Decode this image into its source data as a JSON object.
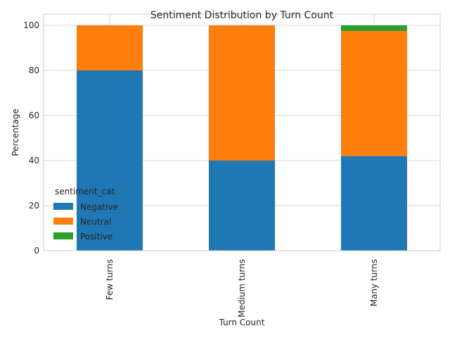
{
  "chart_data": {
    "type": "bar",
    "stacked": true,
    "title": "Sentiment Distribution by Turn Count",
    "xlabel": "Turn Count",
    "ylabel": "Percentage",
    "categories": [
      "Few turns",
      "Medium turns",
      "Many turns"
    ],
    "series": [
      {
        "name": "Negative",
        "color": "#1f77b4",
        "values": [
          80,
          40,
          42
        ]
      },
      {
        "name": "Neutral",
        "color": "#ff7f0e",
        "values": [
          20,
          60,
          55.5
        ]
      },
      {
        "name": "Positive",
        "color": "#2ca02c",
        "values": [
          0,
          0,
          2.5
        ]
      }
    ],
    "ylim": [
      0,
      105
    ],
    "yticks": [
      0,
      20,
      40,
      60,
      80,
      100
    ],
    "grid": true,
    "legend": {
      "title": "sentiment_cat",
      "position": "lower-left"
    }
  }
}
